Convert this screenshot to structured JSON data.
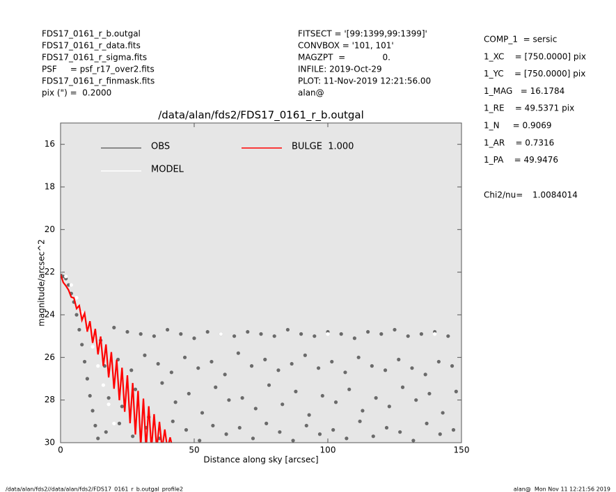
{
  "chart_data": {
    "type": "scatter",
    "title": "/data/alan/fds2/FDS17_0161_r_b.outgal",
    "xlabel": "Distance along sky [arcsec]",
    "ylabel": "magnitude/arcsec^2",
    "xlim": [
      0,
      150
    ],
    "xticks": [
      0,
      50,
      100,
      150
    ],
    "ylim": [
      15,
      30
    ],
    "y_inverted": true,
    "yticks": [
      16,
      18,
      20,
      22,
      24,
      26,
      28,
      30
    ],
    "background": "#e6e6e6",
    "header_left": [
      "FDS17_0161_r_b.outgal",
      "FDS17_0161_r_data.fits",
      "FDS17_0161_r_sigma.fits",
      "PSF     = psf_r17_over2.fits",
      "FDS17_0161_r_finmask.fits",
      "pix (\") =  0.2000"
    ],
    "header_mid": [
      "FITSECT = '[99:1399,99:1399]'",
      "CONVBOX = '101, 101'",
      "MAGZPT  =              0.",
      "INFILE: 2019-Oct-29",
      "PLOT: 11-Nov-2019 12:21:56.00",
      "alan@"
    ],
    "params": [
      "COMP_1  = sersic",
      "1_XC    = [750.0000] pix",
      "1_YC    = [750.0000] pix",
      "1_MAG   = 16.1784",
      "1_RE    = 49.5371 pix",
      "1_N     = 0.9069",
      "1_AR    = 0.7316",
      "1_PA    = 49.9476"
    ],
    "chi2": [
      "Chi2/nu=",
      "1.0084014"
    ],
    "footer_left": "/data/alan/fds2//data/alan/fds2/FDS17_0161_r_b.outgal_profile2",
    "footer_right": "alan@  Mon Nov 11 12:21:56 2019",
    "series": [
      {
        "name": "OBS",
        "color": "#6a6a6a",
        "marker": "dot",
        "x": [
          0,
          1,
          2,
          3,
          4,
          5,
          6,
          7,
          8,
          9,
          10,
          11,
          12,
          13,
          14,
          15,
          16.5,
          18,
          17,
          20,
          21.5,
          23,
          22,
          25,
          26.5,
          28,
          27,
          30,
          31.5,
          33,
          32,
          35,
          36.5,
          38,
          37,
          40,
          41.5,
          43,
          42,
          45,
          46.5,
          48,
          47,
          50,
          51.5,
          53,
          52,
          55,
          56.5,
          58,
          57,
          60,
          61.5,
          63,
          62,
          65,
          66.5,
          68,
          67,
          70,
          71.5,
          73,
          72,
          75,
          76.5,
          78,
          77,
          80,
          81.5,
          83,
          82,
          85,
          86.5,
          88,
          87,
          90,
          91.5,
          93,
          92,
          95,
          96.5,
          98,
          97,
          100,
          101.5,
          103,
          102,
          105,
          106.5,
          108,
          107,
          110,
          111.5,
          113,
          112,
          115,
          116.5,
          118,
          117,
          120,
          121.5,
          123,
          122,
          125,
          126.5,
          128,
          127,
          130,
          131.5,
          133,
          132,
          135,
          136.5,
          138,
          137,
          140,
          141.5,
          143,
          142,
          145,
          146.5,
          148,
          147
        ],
        "values": [
          22.1,
          22.2,
          22.3,
          22.6,
          23.0,
          23.4,
          24.0,
          24.7,
          25.4,
          26.2,
          27.0,
          27.8,
          28.5,
          29.2,
          29.8,
          25.2,
          26.4,
          27.9,
          29.5,
          24.6,
          26.1,
          28.3,
          29.1,
          24.8,
          26.6,
          27.5,
          29.7,
          24.9,
          25.9,
          28.8,
          29.3,
          25.0,
          26.3,
          27.2,
          29.8,
          24.7,
          26.7,
          28.1,
          29.0,
          24.9,
          26.0,
          27.7,
          29.4,
          25.1,
          26.5,
          28.6,
          29.9,
          24.8,
          26.2,
          27.4,
          29.2,
          24.9,
          26.8,
          28.0,
          29.6,
          25.0,
          25.8,
          27.9,
          29.3,
          24.8,
          26.4,
          28.4,
          29.8,
          24.9,
          26.1,
          27.3,
          29.1,
          25.0,
          26.6,
          28.2,
          29.5,
          24.7,
          26.3,
          27.6,
          29.9,
          24.9,
          25.9,
          28.7,
          29.2,
          25.0,
          26.5,
          27.8,
          29.6,
          24.8,
          26.2,
          28.1,
          29.4,
          24.9,
          26.7,
          27.5,
          29.8,
          25.1,
          26.0,
          28.5,
          29.0,
          24.8,
          26.4,
          27.9,
          29.7,
          24.9,
          26.6,
          28.3,
          29.3,
          24.7,
          26.1,
          27.4,
          29.5,
          25.0,
          26.5,
          28.0,
          29.9,
          24.9,
          26.8,
          27.7,
          29.1,
          24.8,
          26.2,
          28.6,
          29.6,
          25.0,
          26.4,
          27.6,
          29.4
        ]
      },
      {
        "name": "MODEL",
        "color": "#ffffff",
        "marker": "dot",
        "x": [
          0,
          2,
          4,
          6,
          8,
          10,
          12,
          14,
          16,
          18,
          20,
          60,
          100,
          140
        ],
        "values": [
          22.0,
          22.2,
          22.6,
          23.2,
          23.9,
          24.7,
          25.5,
          26.4,
          27.3,
          28.2,
          29.1,
          24.9,
          24.9,
          24.9
        ]
      },
      {
        "name": "BULGE  1.000",
        "color": "#ff0000",
        "marker": "line",
        "x": [
          0,
          1,
          2,
          3,
          4,
          5,
          6,
          7,
          8,
          9,
          10,
          11,
          12,
          13,
          14,
          15,
          16,
          17,
          18,
          19,
          20,
          21,
          22,
          23,
          24,
          25,
          26,
          27,
          28,
          29,
          30,
          31,
          32,
          33,
          34,
          35,
          36,
          37,
          38,
          39,
          40,
          41,
          42,
          43
        ],
        "values": [
          22.1,
          22.48,
          22.64,
          22.84,
          23.17,
          23.21,
          23.71,
          23.57,
          24.25,
          23.93,
          24.79,
          24.3,
          25.32,
          24.66,
          25.86,
          25.02,
          26.4,
          25.39,
          26.94,
          25.75,
          27.47,
          26.11,
          28.01,
          26.48,
          28.55,
          26.84,
          29.09,
          27.2,
          29.62,
          27.57,
          30.16,
          27.93,
          30.3,
          28.29,
          30.3,
          28.66,
          30.3,
          29.02,
          30.3,
          29.38,
          30.3,
          29.75,
          30.3,
          30.11
        ]
      }
    ]
  }
}
